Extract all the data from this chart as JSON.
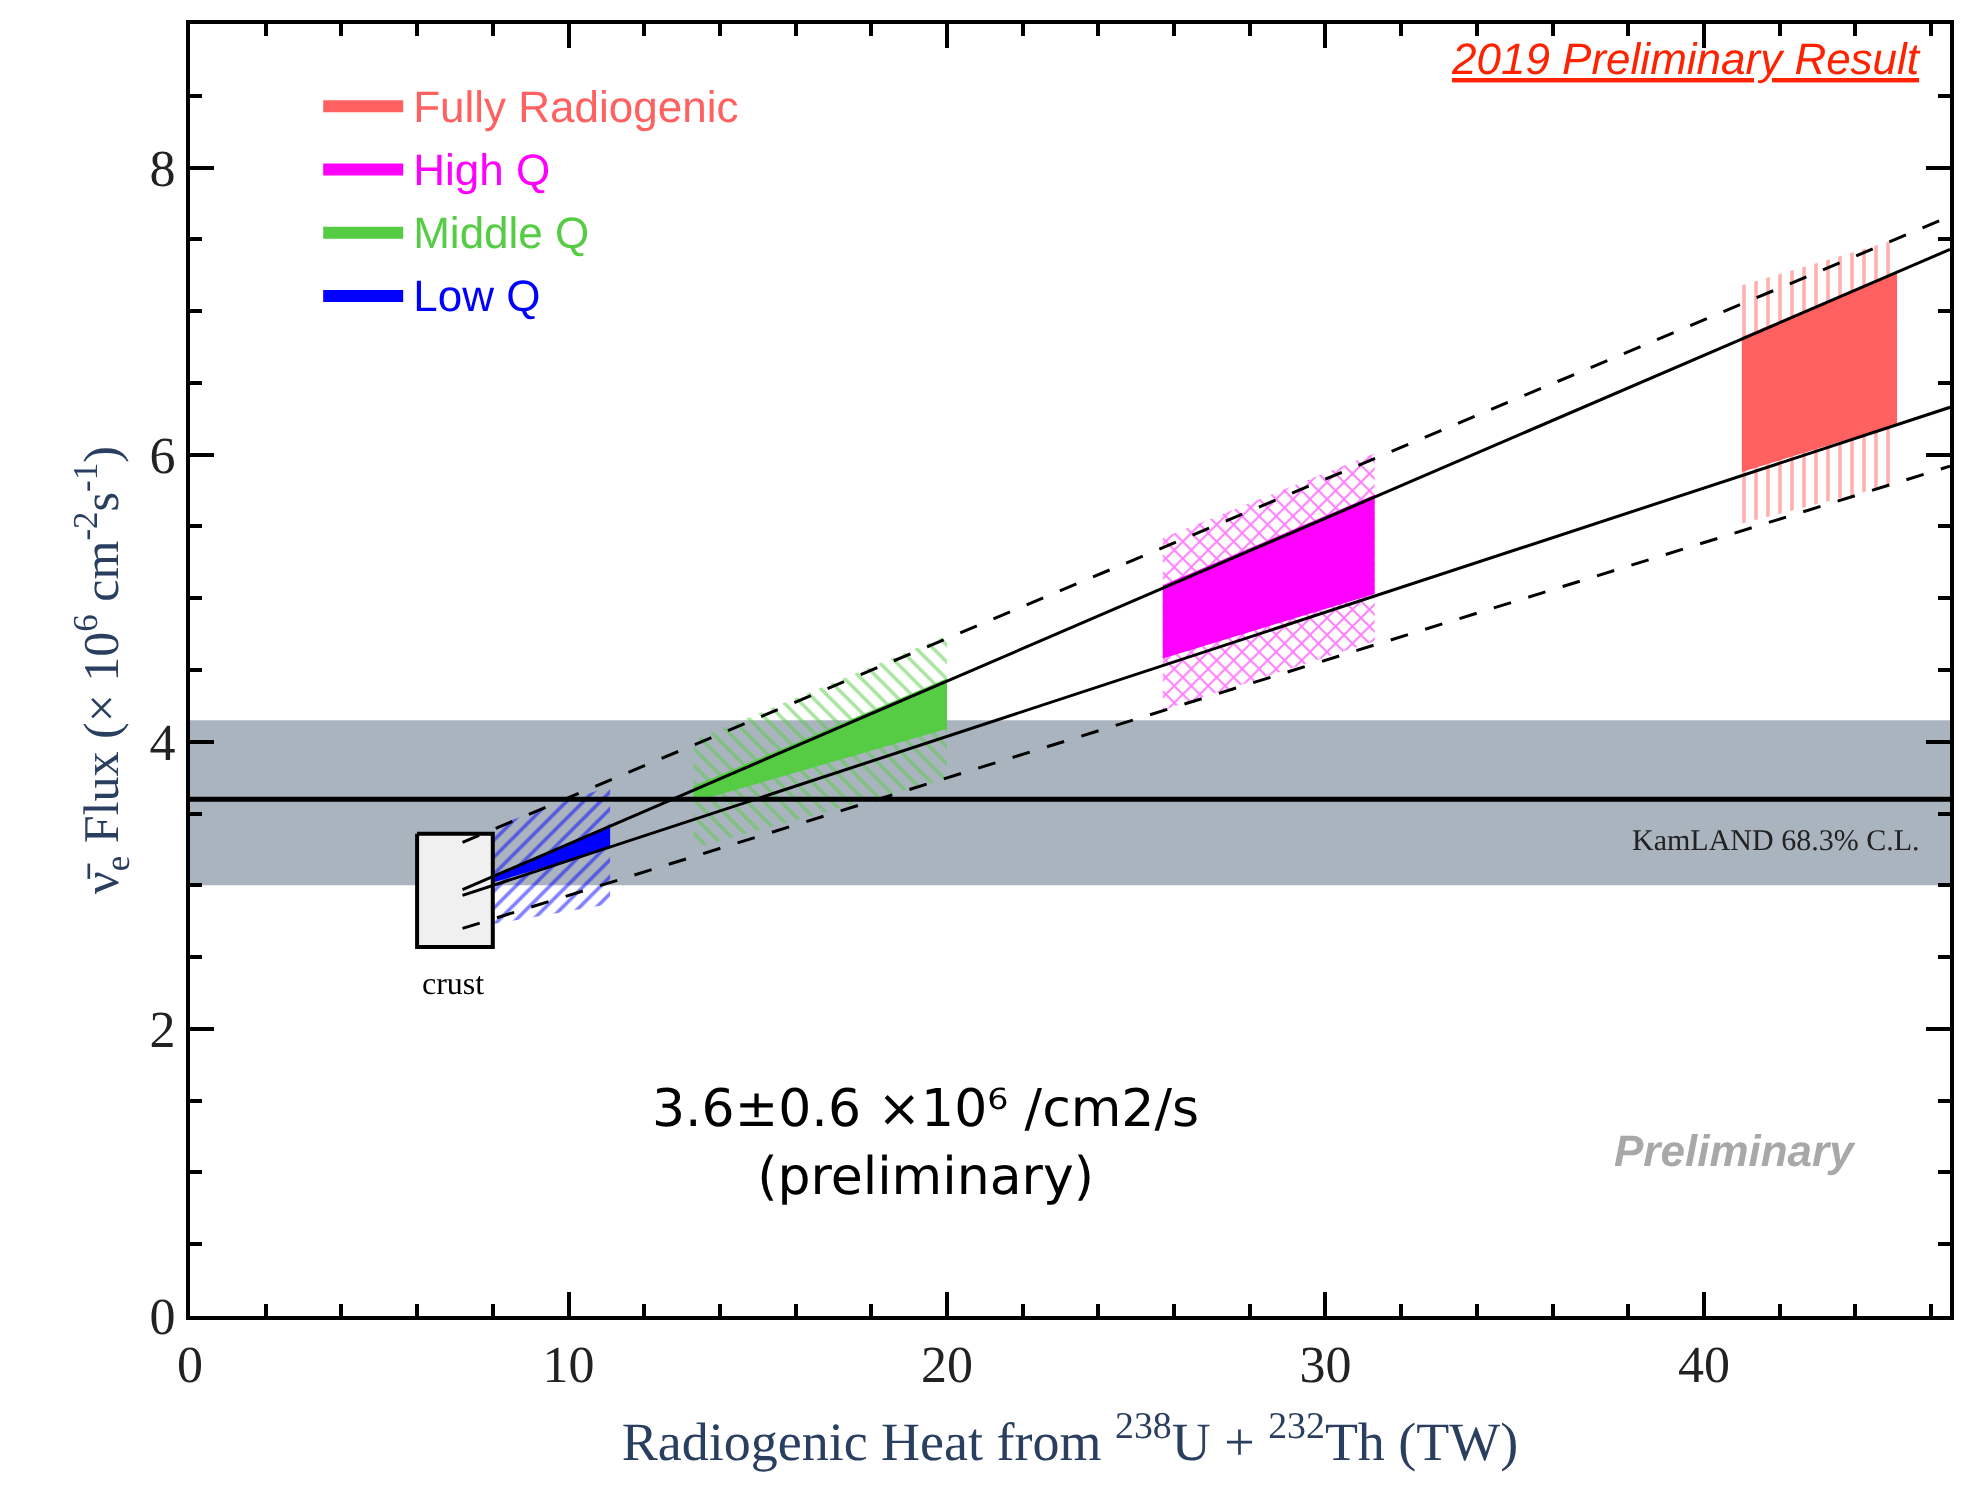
{
  "chart_data": {
    "type": "line",
    "title": "2019 Preliminary Result",
    "xlabel": "Radiogenic Heat from $^{238}$U + $^{232}$Th (TW)",
    "ylabel": "ν̄$_{e}$ Flux (× 10$^{6}$ cm$^{-2}$s$^{-1}$)",
    "xlim": [
      0,
      46.5
    ],
    "ylim": [
      0,
      9
    ],
    "xticks": [
      0,
      10,
      20,
      30,
      40
    ],
    "yticks": [
      0,
      2,
      4,
      6,
      8
    ],
    "grid": false,
    "legend": "top left",
    "series": [
      {
        "type": "area",
        "color": "#ff6060",
        "x": [
          41.0,
          45.1
        ],
        "values": [
          null,
          null
        ],
        "lower": [
          5.52,
          5.8
        ],
        "upper": [
          7.18,
          7.5
        ]
      },
      {
        "name": "Fully Radiogenic",
        "type": "area",
        "color": "#ff6060",
        "x": [
          41.0,
          45.1
        ],
        "values": [
          null,
          null
        ],
        "lower": [
          5.88,
          6.21
        ],
        "upper": [
          6.82,
          7.27
        ]
      },
      {
        "type": "area",
        "color": "#ff00ff",
        "x": [
          25.7,
          31.3
        ],
        "values": [
          null,
          null
        ],
        "lower": [
          4.22,
          4.7
        ],
        "upper": [
          5.42,
          6.01
        ]
      },
      {
        "name": "High Q",
        "type": "area",
        "color": "#ff00ff",
        "x": [
          25.7,
          31.3
        ],
        "values": [
          null,
          null
        ],
        "lower": [
          4.58,
          5.03
        ],
        "upper": [
          5.09,
          5.72
        ]
      },
      {
        "type": "area",
        "color": "#55cc44",
        "x": [
          13.3,
          20.0
        ],
        "values": [
          null,
          null
        ],
        "lower": [
          3.26,
          3.74
        ],
        "upper": [
          4.01,
          4.74
        ]
      },
      {
        "name": "Middle Q",
        "type": "area",
        "color": "#55cc44",
        "x": [
          13.3,
          20.0
        ],
        "values": [
          null,
          null
        ],
        "lower": [
          3.58,
          4.09
        ],
        "upper": [
          3.69,
          4.44
        ]
      },
      {
        "type": "area",
        "color": "#0000ff",
        "x": [
          8.0,
          11.1
        ],
        "values": [
          null,
          null
        ],
        "lower": [
          2.73,
          2.87
        ],
        "upper": [
          3.41,
          3.69
        ]
      },
      {
        "name": "Low Q",
        "type": "area",
        "color": "#0000ff",
        "x": [
          8.0,
          11.1
        ],
        "values": [
          null,
          null
        ],
        "lower": [
          3.02,
          3.26
        ],
        "upper": [
          3.06,
          3.41
        ]
      },
      {
        "type": "area",
        "color": "#f0f0f0",
        "x": [
          6.0,
          8.0
        ],
        "values": [
          null,
          null
        ],
        "lower": [
          2.57,
          2.57
        ],
        "upper": [
          3.36,
          3.36
        ]
      },
      {
        "color": "#000000",
        "line_style": "solid",
        "x": [
          7.2,
          46.5
        ],
        "values": [
          2.97,
          7.43
        ]
      },
      {
        "color": "#000000",
        "line_style": "solid",
        "x": [
          7.2,
          46.5
        ],
        "values": [
          2.93,
          6.33
        ]
      },
      {
        "color": "#000000",
        "line_style": "dashed",
        "x": [
          7.2,
          46.5
        ],
        "values": [
          3.3,
          7.66
        ]
      },
      {
        "color": "#000000",
        "line_style": "dashed",
        "x": [
          7.2,
          46.5
        ],
        "values": [
          2.7,
          5.92
        ]
      }
    ],
    "bands": [
      {
        "axis": "y",
        "from": 3.0,
        "to": 4.15,
        "label": "KamLAND 68.3% C.L.",
        "color": "#aab4bf"
      }
    ],
    "ref_lines": [
      {
        "axis": "y",
        "value": 3.6,
        "color": "#000000",
        "line_style": "solid"
      }
    ],
    "annotations": [
      "crust",
      "3.6±0.6 ×10⁶ /cm2/s\n(preliminary)",
      "Preliminary"
    ]
  }
}
